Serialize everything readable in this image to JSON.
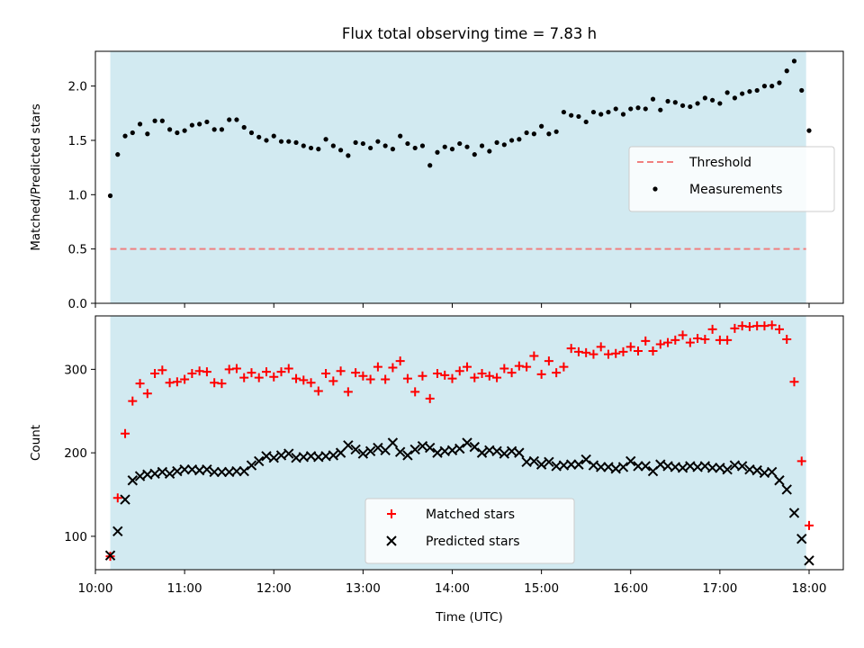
{
  "chart_data": [
    {
      "type": "scatter",
      "title": "Flux total observing time = 7.83 h",
      "xlabel": "",
      "ylabel": "Matched/Predicted stars",
      "xlim": [
        "10:00",
        "18:23"
      ],
      "ylim": [
        0,
        2.32
      ],
      "yticks": [
        "0.0",
        "0.5",
        "1.0",
        "1.5",
        "2.0"
      ],
      "shaded_span": [
        "10:10",
        "17:58"
      ],
      "shaded_color": "#add8e6",
      "grid": false,
      "legend_position": "center-right",
      "threshold": {
        "name": "Threshold",
        "y": 0.5,
        "x_range": [
          "10:10",
          "17:58"
        ],
        "color": "#f08080",
        "style": "dashed"
      },
      "series": [
        {
          "name": "Measurements",
          "marker": "dot",
          "color": "#000000",
          "x": [
            "10:10",
            "10:15",
            "10:20",
            "10:25",
            "10:30",
            "10:35",
            "10:40",
            "10:45",
            "10:50",
            "10:55",
            "11:00",
            "11:05",
            "11:10",
            "11:15",
            "11:20",
            "11:25",
            "11:30",
            "11:35",
            "11:40",
            "11:45",
            "11:50",
            "11:55",
            "12:00",
            "12:05",
            "12:10",
            "12:15",
            "12:20",
            "12:25",
            "12:30",
            "12:35",
            "12:40",
            "12:45",
            "12:50",
            "12:55",
            "13:00",
            "13:05",
            "13:10",
            "13:15",
            "13:20",
            "13:25",
            "13:30",
            "13:35",
            "13:40",
            "13:45",
            "13:50",
            "13:55",
            "14:00",
            "14:05",
            "14:10",
            "14:15",
            "14:20",
            "14:25",
            "14:30",
            "14:35",
            "14:40",
            "14:45",
            "14:50",
            "14:55",
            "15:00",
            "15:05",
            "15:10",
            "15:15",
            "15:20",
            "15:25",
            "15:30",
            "15:35",
            "15:40",
            "15:45",
            "15:50",
            "15:55",
            "16:00",
            "16:05",
            "16:10",
            "16:15",
            "16:20",
            "16:25",
            "16:30",
            "16:35",
            "16:40",
            "16:45",
            "16:50",
            "16:55",
            "17:00",
            "17:05",
            "17:10",
            "17:15",
            "17:20",
            "17:25",
            "17:30",
            "17:35",
            "17:40",
            "17:45",
            "17:50",
            "17:55",
            "18:00"
          ],
          "values": [
            0.99,
            1.37,
            1.54,
            1.57,
            1.65,
            1.56,
            1.68,
            1.68,
            1.6,
            1.57,
            1.59,
            1.64,
            1.65,
            1.67,
            1.6,
            1.6,
            1.69,
            1.69,
            1.62,
            1.57,
            1.53,
            1.5,
            1.54,
            1.49,
            1.49,
            1.48,
            1.45,
            1.43,
            1.42,
            1.51,
            1.45,
            1.41,
            1.36,
            1.48,
            1.47,
            1.43,
            1.49,
            1.45,
            1.42,
            1.54,
            1.47,
            1.43,
            1.45,
            1.27,
            1.39,
            1.44,
            1.42,
            1.47,
            1.44,
            1.37,
            1.45,
            1.4,
            1.48,
            1.46,
            1.5,
            1.51,
            1.57,
            1.56,
            1.63,
            1.56,
            1.58,
            1.76,
            1.73,
            1.72,
            1.67,
            1.76,
            1.74,
            1.76,
            1.79,
            1.74,
            1.79,
            1.8,
            1.79,
            1.88,
            1.78,
            1.86,
            1.85,
            1.82,
            1.81,
            1.84,
            1.89,
            1.87,
            1.84,
            1.94,
            1.89,
            1.93,
            1.95,
            1.96,
            2.0,
            2.0,
            2.03,
            2.14,
            2.23,
            1.96,
            1.59
          ]
        }
      ]
    },
    {
      "type": "scatter",
      "title": "",
      "xlabel": "Time (UTC)",
      "ylabel": "Count",
      "xlim": [
        "10:00",
        "18:23"
      ],
      "ylim": [
        60,
        364
      ],
      "xticks": [
        "10:00",
        "11:00",
        "12:00",
        "13:00",
        "14:00",
        "15:00",
        "16:00",
        "17:00",
        "18:00"
      ],
      "yticks": [
        "100",
        "200",
        "300"
      ],
      "shaded_span": [
        "10:10",
        "17:58"
      ],
      "shaded_color": "#add8e6",
      "grid": false,
      "legend_position": "lower-center",
      "series": [
        {
          "name": "Matched stars",
          "marker": "plus",
          "color": "#ff0000",
          "x": [
            "10:10",
            "10:15",
            "10:20",
            "10:25",
            "10:30",
            "10:35",
            "10:40",
            "10:45",
            "10:50",
            "10:55",
            "11:00",
            "11:05",
            "11:10",
            "11:15",
            "11:20",
            "11:25",
            "11:30",
            "11:35",
            "11:40",
            "11:45",
            "11:50",
            "11:55",
            "12:00",
            "12:05",
            "12:10",
            "12:15",
            "12:20",
            "12:25",
            "12:30",
            "12:35",
            "12:40",
            "12:45",
            "12:50",
            "12:55",
            "13:00",
            "13:05",
            "13:10",
            "13:15",
            "13:20",
            "13:25",
            "13:30",
            "13:35",
            "13:40",
            "13:45",
            "13:50",
            "13:55",
            "14:00",
            "14:05",
            "14:10",
            "14:15",
            "14:20",
            "14:25",
            "14:30",
            "14:35",
            "14:40",
            "14:45",
            "14:50",
            "14:55",
            "15:00",
            "15:05",
            "15:10",
            "15:15",
            "15:20",
            "15:25",
            "15:30",
            "15:35",
            "15:40",
            "15:45",
            "15:50",
            "15:55",
            "16:00",
            "16:05",
            "16:10",
            "16:15",
            "16:20",
            "16:25",
            "16:30",
            "16:35",
            "16:40",
            "16:45",
            "16:50",
            "16:55",
            "17:00",
            "17:05",
            "17:10",
            "17:15",
            "17:20",
            "17:25",
            "17:30",
            "17:35",
            "17:40",
            "17:45",
            "17:50",
            "17:55",
            "18:00"
          ],
          "values": [
            76,
            146,
            223,
            262,
            283,
            271,
            295,
            299,
            284,
            285,
            288,
            295,
            298,
            297,
            284,
            283,
            300,
            301,
            290,
            296,
            290,
            297,
            291,
            297,
            301,
            289,
            287,
            284,
            274,
            295,
            286,
            298,
            273,
            296,
            292,
            288,
            303,
            288,
            302,
            310,
            289,
            273,
            292,
            265,
            295,
            293,
            289,
            298,
            303,
            290,
            295,
            292,
            290,
            301,
            296,
            304,
            303,
            316,
            294,
            310,
            296,
            303,
            325,
            321,
            320,
            318,
            327,
            318,
            319,
            321,
            327,
            322,
            334,
            322,
            330,
            332,
            335,
            341,
            332,
            337,
            336,
            348,
            335,
            335,
            349,
            352,
            351,
            352,
            352,
            353,
            348,
            336,
            285,
            190,
            113
          ]
        },
        {
          "name": "Predicted stars",
          "marker": "x",
          "color": "#000000",
          "x": [
            "10:10",
            "10:15",
            "10:20",
            "10:25",
            "10:30",
            "10:35",
            "10:40",
            "10:45",
            "10:50",
            "10:55",
            "11:00",
            "11:05",
            "11:10",
            "11:15",
            "11:20",
            "11:25",
            "11:30",
            "11:35",
            "11:40",
            "11:45",
            "11:50",
            "11:55",
            "12:00",
            "12:05",
            "12:10",
            "12:15",
            "12:20",
            "12:25",
            "12:30",
            "12:35",
            "12:40",
            "12:45",
            "12:50",
            "12:55",
            "13:00",
            "13:05",
            "13:10",
            "13:15",
            "13:20",
            "13:25",
            "13:30",
            "13:35",
            "13:40",
            "13:45",
            "13:50",
            "13:55",
            "14:00",
            "14:05",
            "14:10",
            "14:15",
            "14:20",
            "14:25",
            "14:30",
            "14:35",
            "14:40",
            "14:45",
            "14:50",
            "14:55",
            "15:00",
            "15:05",
            "15:10",
            "15:15",
            "15:20",
            "15:25",
            "15:30",
            "15:35",
            "15:40",
            "15:45",
            "15:50",
            "15:55",
            "16:00",
            "16:05",
            "16:10",
            "16:15",
            "16:20",
            "16:25",
            "16:30",
            "16:35",
            "16:40",
            "16:45",
            "16:50",
            "16:55",
            "17:00",
            "17:05",
            "17:10",
            "17:15",
            "17:20",
            "17:25",
            "17:30",
            "17:35",
            "17:40",
            "17:45",
            "17:50",
            "17:55",
            "18:00"
          ],
          "values": [
            77,
            106,
            144,
            167,
            172,
            174,
            175,
            177,
            175,
            178,
            180,
            180,
            179,
            180,
            177,
            177,
            177,
            178,
            178,
            185,
            190,
            196,
            194,
            197,
            199,
            194,
            195,
            196,
            195,
            196,
            197,
            200,
            209,
            204,
            199,
            202,
            206,
            203,
            212,
            201,
            197,
            204,
            208,
            206,
            200,
            202,
            203,
            205,
            212,
            207,
            200,
            203,
            202,
            199,
            202,
            200,
            189,
            190,
            186,
            189,
            184,
            185,
            186,
            186,
            192,
            185,
            183,
            183,
            181,
            183,
            190,
            184,
            184,
            178,
            186,
            184,
            183,
            182,
            184,
            183,
            184,
            182,
            182,
            180,
            185,
            184,
            180,
            179,
            176,
            177,
            167,
            156,
            128,
            97,
            71
          ]
        }
      ]
    }
  ]
}
